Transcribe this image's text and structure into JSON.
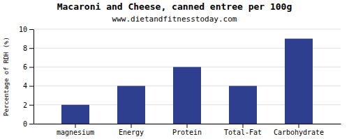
{
  "chart_data": {
    "type": "bar",
    "title": "Macaroni and Cheese, canned entree per 100g",
    "subtitle": "www.dietandfitnesstoday.com",
    "categories": [
      "magnesium",
      "Energy",
      "Protein",
      "Total-Fat",
      "Carbohydrate"
    ],
    "values": [
      2.0,
      4.0,
      6.0,
      4.0,
      9.0
    ],
    "color": "#2e3f8f",
    "ylabel": "Percentage of RDH (%)",
    "ylim": [
      0,
      10
    ],
    "yticks": [
      0,
      2,
      4,
      6,
      8,
      10
    ],
    "grid": true
  }
}
